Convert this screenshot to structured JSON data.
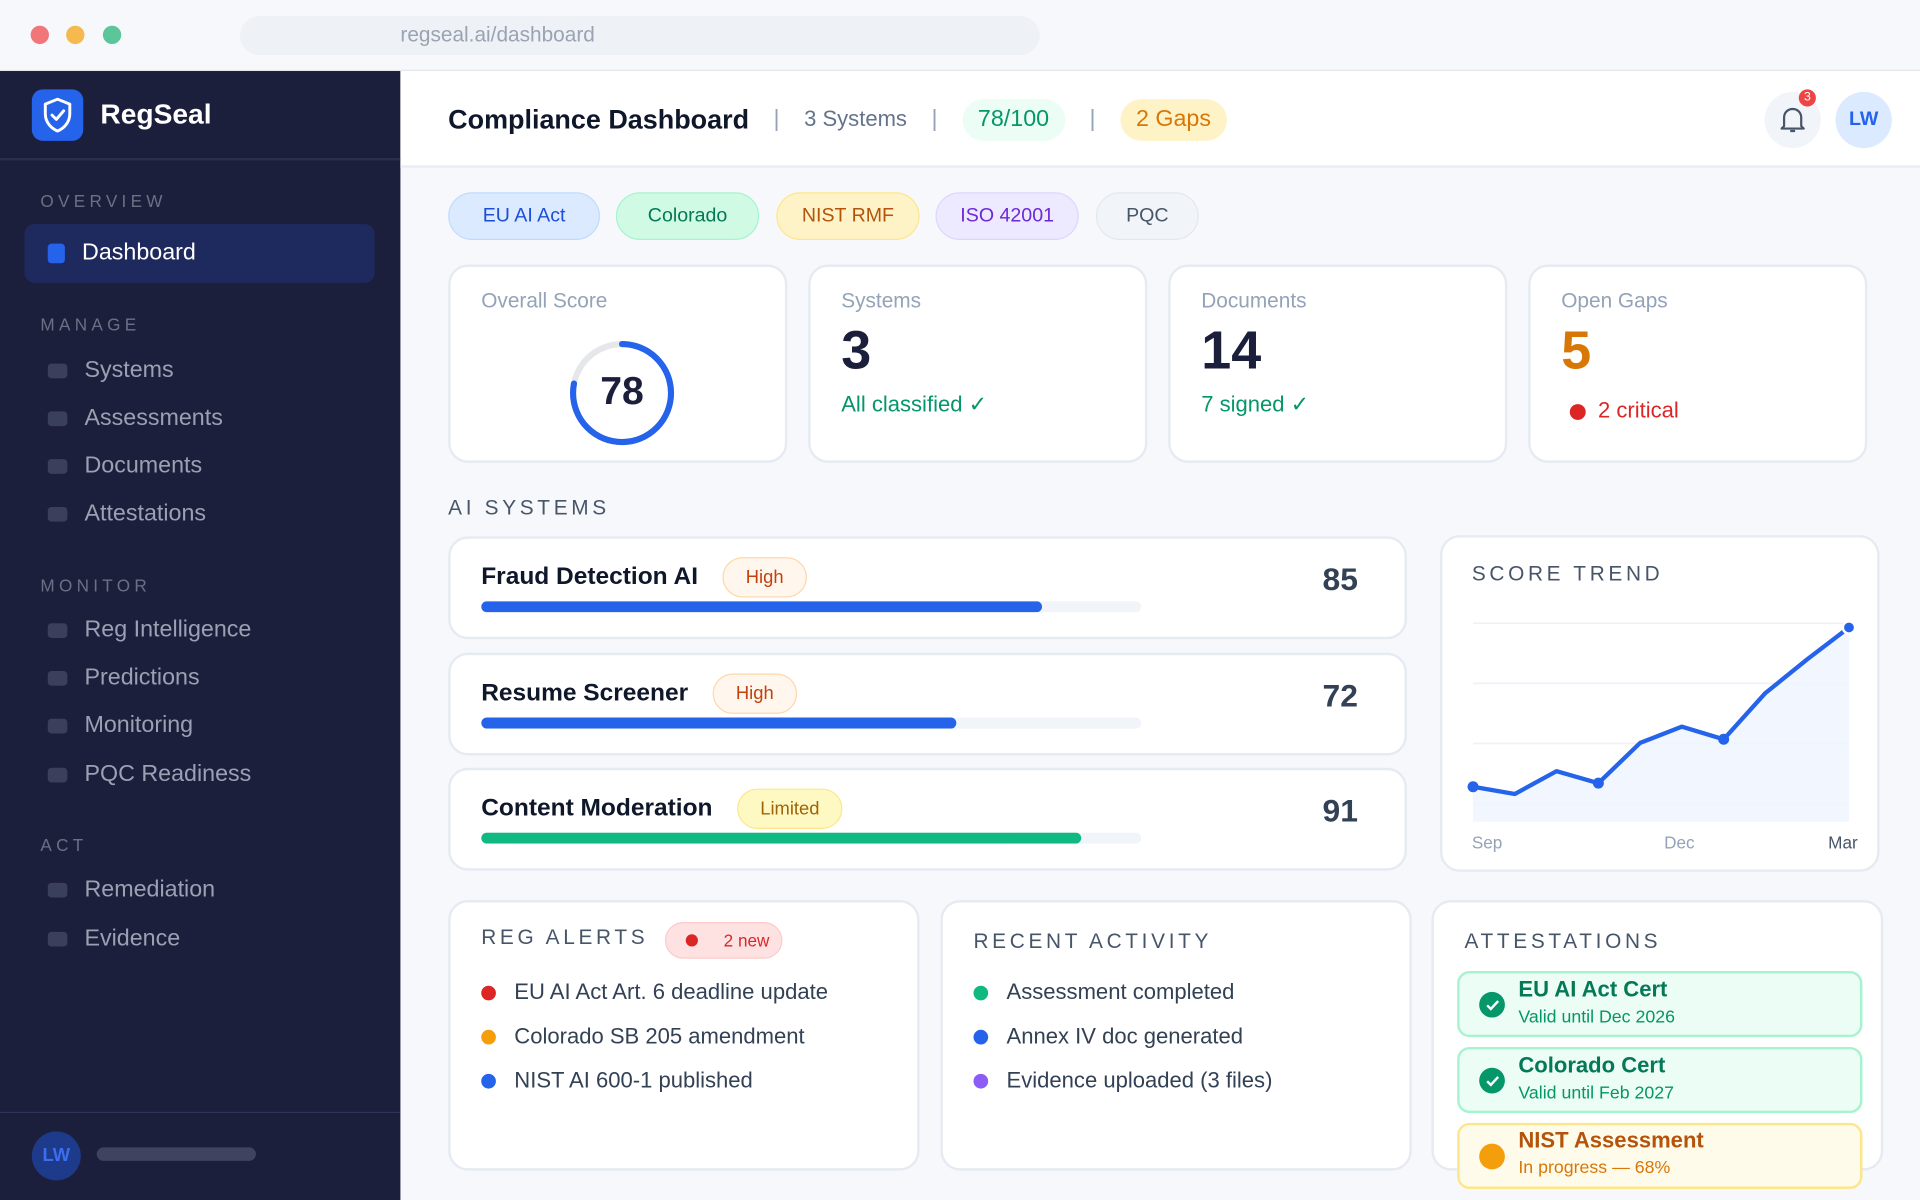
{
  "browser": {
    "url": "regseal.ai/dashboard"
  },
  "sidebar": {
    "brand": "RegSeal",
    "sections": [
      {
        "label": "OVERVIEW",
        "items": [
          {
            "label": "Dashboard",
            "active": true
          }
        ]
      },
      {
        "label": "MANAGE",
        "items": [
          {
            "label": "Systems"
          },
          {
            "label": "Assessments"
          },
          {
            "label": "Documents"
          },
          {
            "label": "Attestations"
          }
        ]
      },
      {
        "label": "MONITOR",
        "items": [
          {
            "label": "Reg Intelligence"
          },
          {
            "label": "Predictions"
          },
          {
            "label": "Monitoring"
          },
          {
            "label": "PQC Readiness"
          }
        ]
      },
      {
        "label": "ACT",
        "items": [
          {
            "label": "Remediation"
          },
          {
            "label": "Evidence"
          }
        ]
      }
    ],
    "user_initials": "LW"
  },
  "header": {
    "title": "Compliance Dashboard",
    "separator": "|",
    "systems": "3 Systems",
    "score_pill": "78/100",
    "gaps_pill": "2 Gaps",
    "notification_count": "3",
    "user_initials": "LW"
  },
  "frameworks": [
    {
      "label": "EU AI Act",
      "color": "#1d4ed8"
    },
    {
      "label": "Colorado",
      "color": "#047857"
    },
    {
      "label": "NIST RMF",
      "color": "#b45309"
    },
    {
      "label": "ISO 42001",
      "color": "#6d28d9"
    },
    {
      "label": "PQC",
      "color": "#475569"
    }
  ],
  "stats": {
    "overall": {
      "label": "Overall Score",
      "value": "78",
      "percent": 78
    },
    "systems": {
      "label": "Systems",
      "value": "3",
      "sub": "All classified ✓"
    },
    "documents": {
      "label": "Documents",
      "value": "14",
      "sub": "7 signed ✓"
    },
    "gaps": {
      "label": "Open Gaps",
      "value": "5",
      "sub": "2 critical"
    }
  },
  "ai_systems": {
    "title": "AI SYSTEMS",
    "items": [
      {
        "name": "Fraud Detection AI",
        "risk": "High",
        "score": "85",
        "progress": 85,
        "bar_color": "#2563eb"
      },
      {
        "name": "Resume Screener",
        "risk": "High",
        "score": "72",
        "progress": 72,
        "bar_color": "#2563eb"
      },
      {
        "name": "Content Moderation",
        "risk": "Limited",
        "score": "91",
        "progress": 91,
        "bar_color": "#10b981"
      }
    ]
  },
  "chart_data": {
    "type": "area",
    "title": "SCORE TREND",
    "x_tick_labels": [
      "Sep",
      "Dec",
      "Mar"
    ],
    "values": [
      52.8,
      51.6,
      55.4,
      53.4,
      60.1,
      62.8,
      60.7,
      68.4,
      74.0,
      79.3
    ],
    "marker_indices": [
      0,
      3,
      6,
      9
    ],
    "ylim": [
      47,
      80
    ],
    "gridlines": [
      50,
      60,
      70,
      80
    ],
    "grid": true,
    "color": "#2563eb"
  },
  "reg_alerts": {
    "title": "REG ALERTS",
    "badge": "2 new",
    "items": [
      {
        "text": "EU AI Act Art. 6 deadline update",
        "color": "#dc2626"
      },
      {
        "text": "Colorado SB 205 amendment",
        "color": "#f59e0b"
      },
      {
        "text": "NIST AI 600-1 published",
        "color": "#2563eb"
      }
    ]
  },
  "recent_activity": {
    "title": "RECENT ACTIVITY",
    "items": [
      {
        "text": "Assessment completed",
        "color": "#10b981"
      },
      {
        "text": "Annex IV doc generated",
        "color": "#2563eb"
      },
      {
        "text": "Evidence uploaded (3 files)",
        "color": "#8b5cf6"
      }
    ]
  },
  "attestations": {
    "title": "ATTESTATIONS",
    "items": [
      {
        "title": "EU AI Act Cert",
        "sub": "Valid until Dec 2026",
        "status": "valid"
      },
      {
        "title": "Colorado Cert",
        "sub": "Valid until Feb 2027",
        "status": "valid"
      },
      {
        "title": "NIST Assessment",
        "sub": "In progress — 68%",
        "status": "in-progress",
        "progress": 68
      }
    ]
  }
}
